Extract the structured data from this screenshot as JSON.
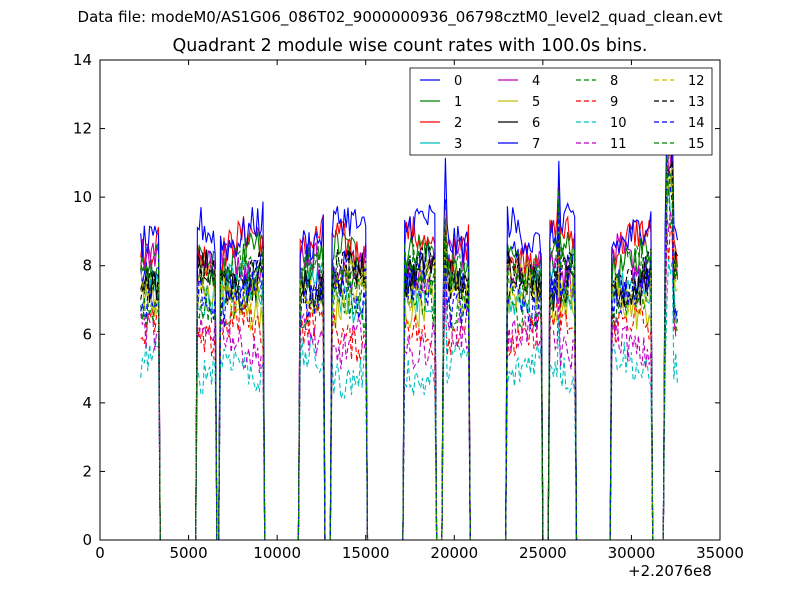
{
  "suptitle": "Data file: modeM0/AS1G06_086T02_9000000936_06798cztM0_level2_quad_clean.evt",
  "chart_data": {
    "type": "line",
    "title": "Quadrant 2 module wise count rates with 100.0s bins.",
    "xlabel": "",
    "ylabel": "",
    "x_offset_label": "+2.2076e8",
    "xlim": [
      0,
      35000
    ],
    "ylim": [
      0,
      14
    ],
    "x_ticks": [
      "0",
      "5000",
      "10000",
      "15000",
      "20000",
      "25000",
      "30000",
      "35000"
    ],
    "y_ticks": [
      "0",
      "2",
      "4",
      "6",
      "8",
      "10",
      "12",
      "14"
    ],
    "grid": false,
    "legend_position": "top-right",
    "legend_columns": 4,
    "segments": [
      [
        2300,
        3300
      ],
      [
        5500,
        6500
      ],
      [
        6800,
        9200
      ],
      [
        11300,
        12600
      ],
      [
        13100,
        15000
      ],
      [
        17200,
        18900
      ],
      [
        19400,
        20800
      ],
      [
        23000,
        24900
      ],
      [
        25400,
        26800
      ],
      [
        28900,
        31100
      ],
      [
        31900,
        32600
      ]
    ],
    "series": [
      {
        "name": "0",
        "color": "#0000ff",
        "style": "solid",
        "level": 7.8
      },
      {
        "name": "1",
        "color": "#008000",
        "style": "solid",
        "level": 8.2
      },
      {
        "name": "2",
        "color": "#ff0000",
        "style": "solid",
        "level": 8.6
      },
      {
        "name": "3",
        "color": "#00bfbf",
        "style": "solid",
        "level": 7.2
      },
      {
        "name": "4",
        "color": "#bf00bf",
        "style": "solid",
        "level": 8.0
      },
      {
        "name": "5",
        "color": "#bfbf00",
        "style": "solid",
        "level": 7.0
      },
      {
        "name": "6",
        "color": "#000000",
        "style": "solid",
        "level": 7.6
      },
      {
        "name": "7",
        "color": "#0000ff",
        "style": "solid",
        "level": 9.0
      },
      {
        "name": "8",
        "color": "#008000",
        "style": "dashed",
        "level": 6.9
      },
      {
        "name": "9",
        "color": "#ff0000",
        "style": "dashed",
        "level": 6.1
      },
      {
        "name": "10",
        "color": "#00bfbf",
        "style": "dashed",
        "level": 5.0
      },
      {
        "name": "11",
        "color": "#bf00bf",
        "style": "dashed",
        "level": 5.8
      },
      {
        "name": "12",
        "color": "#bfbf00",
        "style": "dashed",
        "level": 7.4
      },
      {
        "name": "13",
        "color": "#000000",
        "style": "dashed",
        "level": 7.7
      },
      {
        "name": "14",
        "color": "#0000ff",
        "style": "dashed",
        "level": 7.1
      },
      {
        "name": "15",
        "color": "#008000",
        "style": "dashed",
        "level": 7.9
      }
    ]
  }
}
